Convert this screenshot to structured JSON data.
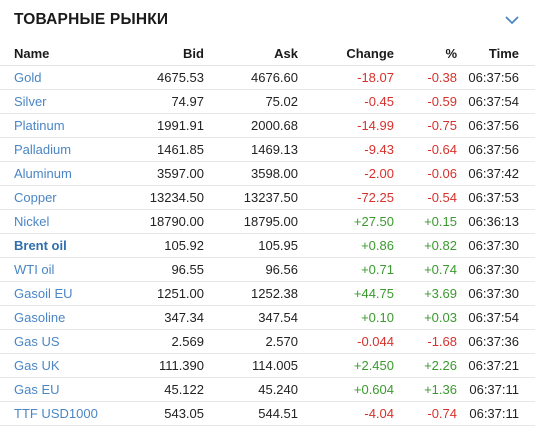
{
  "widget": {
    "title": "ТОВАРНЫЕ РЫНКИ",
    "expand_icon": "chevron-down-icon"
  },
  "columns": {
    "name": "Name",
    "bid": "Bid",
    "ask": "Ask",
    "change": "Change",
    "pct": "%",
    "time": "Time"
  },
  "colors": {
    "link": "#4a86c5",
    "down": "#d8312c",
    "up": "#3a9a2e"
  },
  "rows": [
    {
      "name": "Gold",
      "bid": "4675.53",
      "ask": "4676.60",
      "change": "-18.07",
      "pct": "-0.38",
      "time": "06:37:56",
      "dir": "down"
    },
    {
      "name": "Silver",
      "bid": "74.97",
      "ask": "75.02",
      "change": "-0.45",
      "pct": "-0.59",
      "time": "06:37:54",
      "dir": "down"
    },
    {
      "name": "Platinum",
      "bid": "1991.91",
      "ask": "2000.68",
      "change": "-14.99",
      "pct": "-0.75",
      "time": "06:37:56",
      "dir": "down"
    },
    {
      "name": "Palladium",
      "bid": "1461.85",
      "ask": "1469.13",
      "change": "-9.43",
      "pct": "-0.64",
      "time": "06:37:56",
      "dir": "down"
    },
    {
      "name": "Aluminum",
      "bid": "3597.00",
      "ask": "3598.00",
      "change": "-2.00",
      "pct": "-0.06",
      "time": "06:37:42",
      "dir": "down"
    },
    {
      "name": "Copper",
      "bid": "13234.50",
      "ask": "13237.50",
      "change": "-72.25",
      "pct": "-0.54",
      "time": "06:37:53",
      "dir": "down"
    },
    {
      "name": "Nickel",
      "bid": "18790.00",
      "ask": "18795.00",
      "change": "+27.50",
      "pct": "+0.15",
      "time": "06:36:13",
      "dir": "up"
    },
    {
      "name": "Brent oil",
      "bid": "105.92",
      "ask": "105.95",
      "change": "+0.86",
      "pct": "+0.82",
      "time": "06:37:30",
      "dir": "up",
      "bold": true
    },
    {
      "name": "WTI oil",
      "bid": "96.55",
      "ask": "96.56",
      "change": "+0.71",
      "pct": "+0.74",
      "time": "06:37:30",
      "dir": "up"
    },
    {
      "name": "Gasoil EU",
      "bid": "1251.00",
      "ask": "1252.38",
      "change": "+44.75",
      "pct": "+3.69",
      "time": "06:37:30",
      "dir": "up"
    },
    {
      "name": "Gasoline",
      "bid": "347.34",
      "ask": "347.54",
      "change": "+0.10",
      "pct": "+0.03",
      "time": "06:37:54",
      "dir": "up"
    },
    {
      "name": "Gas US",
      "bid": "2.569",
      "ask": "2.570",
      "change": "-0.044",
      "pct": "-1.68",
      "time": "06:37:36",
      "dir": "down"
    },
    {
      "name": "Gas UK",
      "bid": "111.390",
      "ask": "114.005",
      "change": "+2.450",
      "pct": "+2.26",
      "time": "06:37:21",
      "dir": "up"
    },
    {
      "name": "Gas EU",
      "bid": "45.122",
      "ask": "45.240",
      "change": "+0.604",
      "pct": "+1.36",
      "time": "06:37:11",
      "dir": "up"
    },
    {
      "name": "TTF USD1000",
      "bid": "543.05",
      "ask": "544.51",
      "change": "-4.04",
      "pct": "-0.74",
      "time": "06:37:11",
      "dir": "down",
      "faded": true
    }
  ]
}
